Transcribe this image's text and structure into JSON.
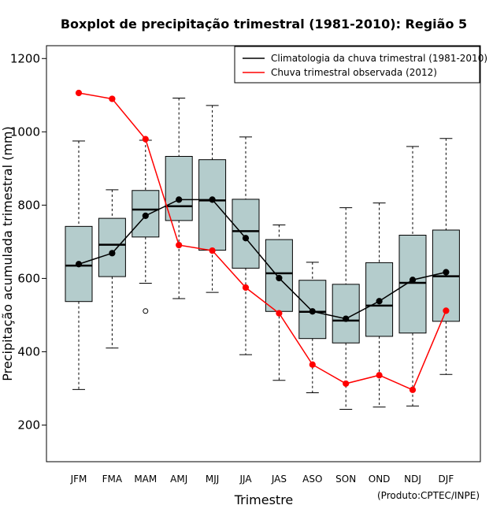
{
  "chart_data": {
    "type": "box",
    "title": "Boxplot de precipitação trimestral (1981-2010): Região 5",
    "xlabel": "Trimestre",
    "ylabel": "Precipitação acumulada trimestral (mm)",
    "credit": "(Produto:CPTEC/INPE)",
    "ylim": [
      100,
      1235
    ],
    "yticks": [
      200,
      400,
      600,
      800,
      1000,
      1200
    ],
    "categories": [
      "JFM",
      "FMA",
      "MAM",
      "AMJ",
      "MJJ",
      "JJA",
      "JAS",
      "ASO",
      "SON",
      "OND",
      "NDJ",
      "DJF"
    ],
    "boxes": [
      {
        "min": 297,
        "q1": 537,
        "median": 635,
        "q3": 742,
        "max": 975,
        "outliers": []
      },
      {
        "min": 410,
        "q1": 605,
        "median": 692,
        "q3": 764,
        "max": 842,
        "outliers": []
      },
      {
        "min": 587,
        "q1": 713,
        "median": 788,
        "q3": 840,
        "max": 977,
        "outliers": [
          511
        ]
      },
      {
        "min": 545,
        "q1": 758,
        "median": 797,
        "q3": 933,
        "max": 1092,
        "outliers": []
      },
      {
        "min": 562,
        "q1": 677,
        "median": 813,
        "q3": 924,
        "max": 1072,
        "outliers": []
      },
      {
        "min": 392,
        "q1": 628,
        "median": 729,
        "q3": 816,
        "max": 986,
        "outliers": []
      },
      {
        "min": 322,
        "q1": 510,
        "median": 614,
        "q3": 706,
        "max": 746,
        "outliers": []
      },
      {
        "min": 288,
        "q1": 436,
        "median": 509,
        "q3": 595,
        "max": 644,
        "outliers": []
      },
      {
        "min": 243,
        "q1": 424,
        "median": 485,
        "q3": 584,
        "max": 793,
        "outliers": []
      },
      {
        "min": 249,
        "q1": 442,
        "median": 526,
        "q3": 643,
        "max": 806,
        "outliers": []
      },
      {
        "min": 252,
        "q1": 451,
        "median": 588,
        "q3": 718,
        "max": 960,
        "outliers": []
      },
      {
        "min": 338,
        "q1": 483,
        "median": 606,
        "q3": 732,
        "max": 982,
        "outliers": []
      }
    ],
    "series": [
      {
        "name": "Climatologia da chuva trimestral (1981-2010)",
        "color": "#000000",
        "values": [
          639,
          669,
          771,
          815,
          815,
          710,
          601,
          510,
          490,
          538,
          596,
          617
        ]
      },
      {
        "name": "Chuva trimestral observada (2012)",
        "color": "#ff0000",
        "values": [
          1106,
          1090,
          980,
          691,
          676,
          575,
          505,
          365,
          313,
          336,
          296,
          512
        ]
      }
    ],
    "box_fill": "#b4cccc",
    "legend_position": "top-right"
  }
}
